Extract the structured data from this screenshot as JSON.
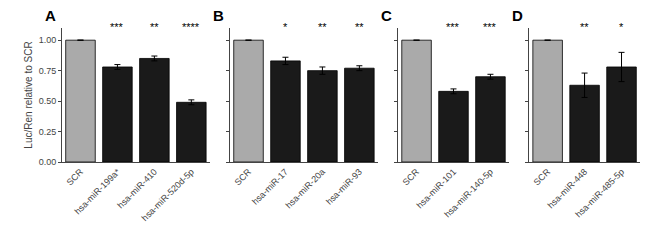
{
  "chart_data": [
    {
      "type": "bar",
      "title": "A",
      "categories": [
        "SCR",
        "hsa-miR-199a*",
        "hsa-miR-410",
        "hsa-miR-520d-5p"
      ],
      "values": [
        1.0,
        0.78,
        0.85,
        0.49
      ],
      "errors": [
        0.0,
        0.02,
        0.02,
        0.02
      ],
      "colors": [
        "#aaaaaa",
        "#1a1a1a",
        "#1a1a1a",
        "#1a1a1a"
      ],
      "annotations": [
        {
          "x": 1,
          "y": 1.04,
          "text": "***"
        },
        {
          "x": 2,
          "y": 1.04,
          "text": "**"
        },
        {
          "x": 3,
          "y": 1.04,
          "text": "****"
        }
      ],
      "ylim": [
        0,
        1.1
      ],
      "yticks": [
        {
          "value": 0,
          "label": "0.00"
        },
        {
          "value": 0.25,
          "label": "0.25"
        },
        {
          "value": 0.5,
          "label": "0.50"
        },
        {
          "value": 0.75,
          "label": "0.75"
        },
        {
          "value": 1,
          "label": "1.00"
        }
      ],
      "ylabel": "Luc/Ren relative to SCR",
      "grid": false
    },
    {
      "type": "bar",
      "title": "B",
      "categories": [
        "SCR",
        "hsa-miR-17",
        "hsa-miR-20a",
        "hsa-miR-93"
      ],
      "values": [
        1.0,
        0.83,
        0.75,
        0.77
      ],
      "errors": [
        0.0,
        0.03,
        0.03,
        0.02
      ],
      "colors": [
        "#aaaaaa",
        "#1a1a1a",
        "#1a1a1a",
        "#1a1a1a"
      ],
      "annotations": [
        {
          "x": 1,
          "y": 1.04,
          "text": "*"
        },
        {
          "x": 2,
          "y": 1.04,
          "text": "**"
        },
        {
          "x": 3,
          "y": 1.04,
          "text": "**"
        }
      ],
      "ylim": [
        0,
        1.1
      ],
      "yticks": [
        0,
        0.25,
        0.5,
        0.75,
        1
      ],
      "tick_labels": "x",
      "grid": false
    },
    {
      "type": "bar",
      "title": "C",
      "categories": [
        "SCR",
        "hsa-miR-101",
        "hsa-miR-140-5p"
      ],
      "values": [
        1.0,
        0.58,
        0.7
      ],
      "errors": [
        0.0,
        0.02,
        0.02
      ],
      "colors": [
        "#aaaaaa",
        "#1a1a1a",
        "#1a1a1a"
      ],
      "annotations": [
        {
          "x": 1,
          "y": 1.04,
          "text": "***"
        },
        {
          "x": 2,
          "y": 1.04,
          "text": "***"
        }
      ],
      "ylim": [
        0,
        1.1
      ],
      "yticks": [
        0,
        0.25,
        0.5,
        0.75,
        1
      ],
      "tick_labels": "x",
      "grid": false
    },
    {
      "type": "bar",
      "title": "D",
      "categories": [
        "SCR",
        "hsa-miR-448",
        "hsa-miR-485-5p"
      ],
      "values": [
        1.0,
        0.63,
        0.78
      ],
      "errors": [
        0.0,
        0.1,
        0.12
      ],
      "colors": [
        "#aaaaaa",
        "#1a1a1a",
        "#1a1a1a"
      ],
      "annotations": [
        {
          "x": 1,
          "y": 1.04,
          "text": "**"
        },
        {
          "x": 2,
          "y": 1.04,
          "text": "*"
        }
      ],
      "ylim": [
        0,
        1.1
      ],
      "yticks": [
        0,
        0.25,
        0.5,
        0.75,
        1
      ],
      "tick_labels": "x",
      "grid": false
    }
  ]
}
